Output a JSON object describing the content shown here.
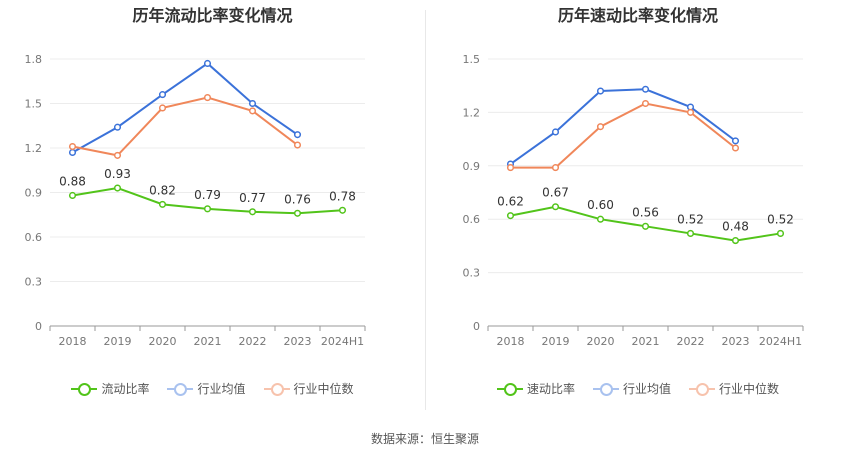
{
  "source": "数据来源：恒生聚源",
  "chart_data": [
    {
      "type": "line",
      "title": "历年流动比率变化情况",
      "categories": [
        "2018",
        "2019",
        "2020",
        "2021",
        "2022",
        "2023",
        "2024H1"
      ],
      "yticks": [
        "0",
        "0.3",
        "0.6",
        "0.9",
        "1.2",
        "1.5",
        "1.8"
      ],
      "ylim": [
        0,
        1.8
      ],
      "grid": true,
      "legend_position": "bottom",
      "series": [
        {
          "name": "流动比率",
          "color": "#52c41a",
          "values": [
            0.88,
            0.93,
            0.82,
            0.79,
            0.77,
            0.76,
            0.78
          ],
          "labels": [
            "0.88",
            "0.93",
            "0.82",
            "0.79",
            "0.77",
            "0.76",
            "0.78"
          ]
        },
        {
          "name": "行业均值",
          "color": "#3b72d9",
          "values": [
            1.17,
            1.34,
            1.56,
            1.77,
            1.5,
            1.29,
            null
          ]
        },
        {
          "name": "行业中位数",
          "color": "#f0875a",
          "values": [
            1.21,
            1.15,
            1.47,
            1.54,
            1.45,
            1.22,
            null
          ]
        }
      ]
    },
    {
      "type": "line",
      "title": "历年速动比率变化情况",
      "categories": [
        "2018",
        "2019",
        "2020",
        "2021",
        "2022",
        "2023",
        "2024H1"
      ],
      "yticks": [
        "0",
        "0.3",
        "0.6",
        "0.9",
        "1.2",
        "1.5"
      ],
      "ylim": [
        0,
        1.5
      ],
      "grid": true,
      "legend_position": "bottom",
      "series": [
        {
          "name": "速动比率",
          "color": "#52c41a",
          "values": [
            0.62,
            0.67,
            0.6,
            0.56,
            0.52,
            0.48,
            0.52
          ],
          "labels": [
            "0.62",
            "0.67",
            "0.60",
            "0.56",
            "0.52",
            "0.48",
            "0.52"
          ]
        },
        {
          "name": "行业均值",
          "color": "#3b72d9",
          "values": [
            0.91,
            1.09,
            1.32,
            1.33,
            1.23,
            1.04,
            null
          ]
        },
        {
          "name": "行业中位数",
          "color": "#f0875a",
          "values": [
            0.89,
            0.89,
            1.12,
            1.25,
            1.2,
            1.0,
            null
          ]
        }
      ]
    }
  ]
}
